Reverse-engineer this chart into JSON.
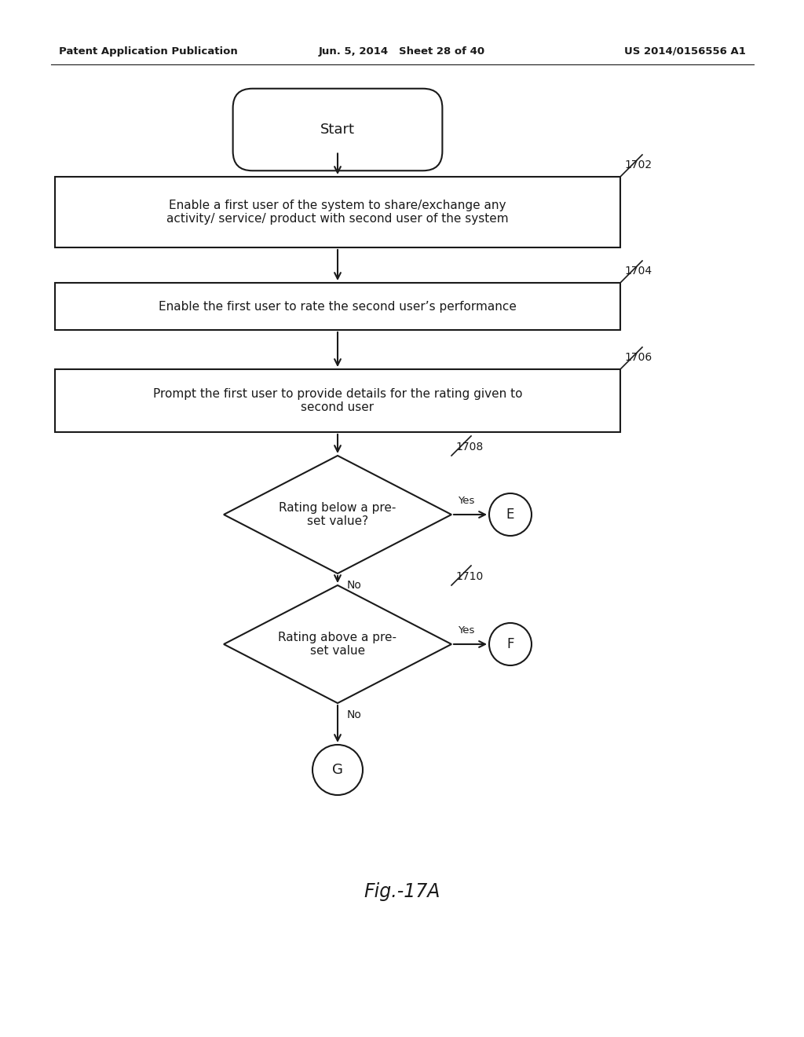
{
  "bg_color": "#ffffff",
  "header_left": "Patent Application Publication",
  "header_center": "Jun. 5, 2014   Sheet 28 of 40",
  "header_right": "US 2014/0156556 A1",
  "fig_label": "Fig.-17A",
  "start_label": "Start",
  "box1_label": "Enable a first user of the system to share/exchange any\nactivity/ service/ product with second user of the system",
  "box1_ref": "1702",
  "box2_label": "Enable the first user to rate the second user’s performance",
  "box2_ref": "1704",
  "box3_label": "Prompt the first user to provide details for the rating given to\nsecond user",
  "box3_ref": "1706",
  "d1_label": "Rating below a pre-\nset value?",
  "d1_ref": "1708",
  "d1_yes": "Yes",
  "d1_no": "No",
  "d1_conn": "E",
  "d2_label": "Rating above a pre-\nset value",
  "d2_ref": "1710",
  "d2_yes": "Yes",
  "d2_no": "No",
  "d2_conn": "F",
  "end_conn": "G",
  "line_color": "#1a1a1a",
  "text_color": "#1a1a1a",
  "font_family": "DejaVu Sans",
  "header_fontsize": 9.5,
  "body_fontsize": 11,
  "ref_fontsize": 10,
  "fig_fontsize": 17
}
